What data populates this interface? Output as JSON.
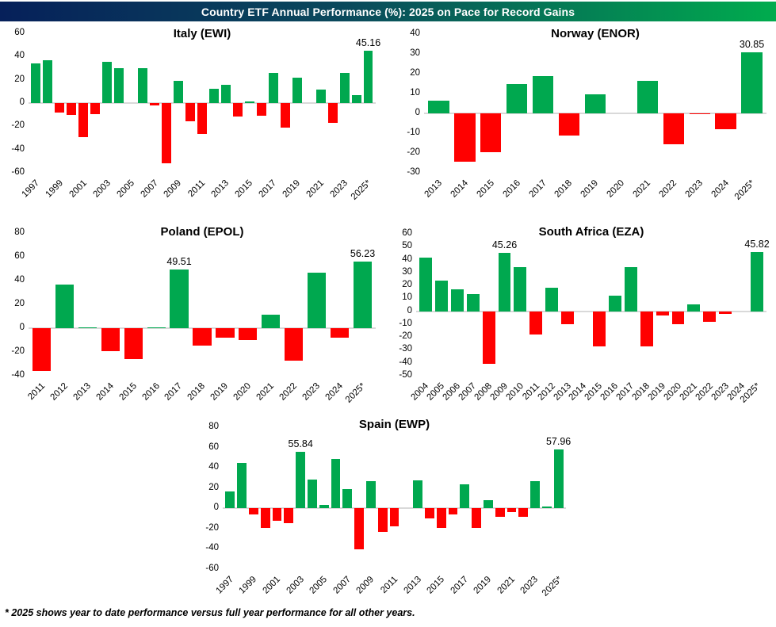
{
  "header": {
    "title": "Country ETF Annual Performance (%): 2025 on Pace for Record Gains"
  },
  "footnote": "* 2025 shows year to date performance versus full year performance for all other years.",
  "colors": {
    "positive_bar": "#00a84f",
    "negative_bar": "#ff0000",
    "banner_left": "#06205a",
    "banner_right": "#00ac4e",
    "zero_line": "#d9d9d9",
    "text": "#000000"
  },
  "chart_data": [
    {
      "type": "bar",
      "title": "Italy (EWI)",
      "categories": [
        "1997",
        "1998",
        "1999",
        "2000",
        "2001",
        "2002",
        "2003",
        "2004",
        "2005",
        "2006",
        "2007",
        "2008",
        "2009",
        "2010",
        "2011",
        "2012",
        "2013",
        "2014",
        "2015",
        "2016",
        "2017",
        "2018",
        "2019",
        "2020",
        "2021",
        "2022",
        "2023",
        "2024",
        "2025*"
      ],
      "values": [
        34,
        36.5,
        -8,
        -10,
        -29.5,
        -9.5,
        35.5,
        30,
        0,
        30,
        -2,
        -52,
        19,
        -16,
        -26.5,
        12.5,
        16,
        -11.5,
        1.5,
        -11,
        26,
        -21,
        22,
        0,
        11.5,
        -17,
        26,
        6.5,
        45.16
      ],
      "ylim": [
        -60,
        60
      ],
      "ytick_step": 20,
      "xtick_every": 2,
      "grid": false,
      "legend": "none",
      "annotations": [
        {
          "category": "2025*",
          "text": "45.16"
        }
      ]
    },
    {
      "type": "bar",
      "title": "Norway (ENOR)",
      "categories": [
        "2013",
        "2014",
        "2015",
        "2016",
        "2017",
        "2018",
        "2019",
        "2020",
        "2021",
        "2022",
        "2023",
        "2024",
        "2025*"
      ],
      "values": [
        6.5,
        -24.5,
        -19.5,
        15,
        19,
        -11,
        9.5,
        0,
        16.5,
        -15.5,
        -0.5,
        -8,
        30.85
      ],
      "ylim": [
        -30,
        40
      ],
      "ytick_step": 10,
      "xtick_every": 1,
      "grid": false,
      "legend": "none",
      "annotations": [
        {
          "category": "2025*",
          "text": "30.85"
        }
      ]
    },
    {
      "type": "bar",
      "title": "Poland (EPOL)",
      "categories": [
        "2011",
        "2012",
        "2013",
        "2014",
        "2015",
        "2016",
        "2017",
        "2018",
        "2019",
        "2020",
        "2021",
        "2022",
        "2023",
        "2024",
        "2025*"
      ],
      "values": [
        -36,
        37,
        1,
        -19,
        -26,
        1,
        49.51,
        -14.5,
        -8,
        -10,
        11.5,
        -27,
        46.5,
        -8,
        56.23
      ],
      "ylim": [
        -40,
        80
      ],
      "ytick_step": 20,
      "xtick_every": 1,
      "grid": false,
      "legend": "none",
      "annotations": [
        {
          "category": "2017",
          "text": "49.51"
        },
        {
          "category": "2025*",
          "text": "56.23"
        }
      ]
    },
    {
      "type": "bar",
      "title": "South Africa (EZA)",
      "categories": [
        "2004",
        "2005",
        "2006",
        "2007",
        "2008",
        "2009",
        "2010",
        "2011",
        "2012",
        "2013",
        "2014",
        "2015",
        "2016",
        "2017",
        "2018",
        "2019",
        "2020",
        "2021",
        "2022",
        "2023",
        "2024",
        "2025*"
      ],
      "values": [
        41.5,
        23.5,
        17,
        13.5,
        -41,
        45.26,
        34,
        -18,
        18,
        -10,
        0,
        -27,
        12,
        34,
        -27.5,
        -3.5,
        -10,
        5.5,
        -8.5,
        -2,
        0,
        45.82
      ],
      "ylim": [
        -50,
        60
      ],
      "ytick_step": 10,
      "xtick_every": 1,
      "grid": false,
      "legend": "none",
      "annotations": [
        {
          "category": "2009",
          "text": "45.26"
        },
        {
          "category": "2025*",
          "text": "45.82"
        }
      ]
    },
    {
      "type": "bar",
      "title": "Spain (EWP)",
      "categories": [
        "1997",
        "1998",
        "1999",
        "2000",
        "2001",
        "2002",
        "2003",
        "2004",
        "2005",
        "2006",
        "2007",
        "2008",
        "2009",
        "2010",
        "2011",
        "2012",
        "2013",
        "2014",
        "2015",
        "2016",
        "2017",
        "2018",
        "2019",
        "2020",
        "2021",
        "2022",
        "2023",
        "2024",
        "2025*"
      ],
      "values": [
        17,
        44.5,
        -6,
        -19,
        -12,
        -15,
        55.84,
        28,
        3,
        48.5,
        19,
        -40.5,
        27,
        -23.5,
        -18,
        0,
        27.5,
        -10,
        -19,
        -6,
        23.5,
        -19,
        8,
        -8,
        -4,
        -8,
        27,
        1.5,
        57.96
      ],
      "ylim": [
        -60,
        80
      ],
      "ytick_step": 20,
      "xtick_every": 2,
      "grid": false,
      "legend": "none",
      "annotations": [
        {
          "category": "2003",
          "text": "55.84"
        },
        {
          "category": "2025*",
          "text": "57.96"
        }
      ]
    }
  ]
}
